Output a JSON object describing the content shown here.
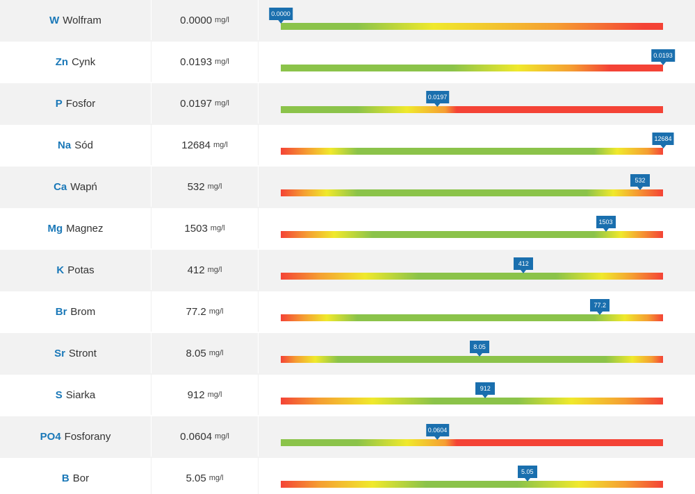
{
  "colors": {
    "green": "#8bc34a",
    "yellow": "#f0e92c",
    "orange": "#f59e32",
    "red": "#f44336",
    "accent": "#1a78b8",
    "marker": "#1a6fae"
  },
  "rows": [
    {
      "symbol": "W",
      "name": "Wolfram",
      "value": "0.0000",
      "unit": "mg/l",
      "marker": "0.0000",
      "marker_pos": 0.0,
      "gradient": [
        [
          "green",
          0.0
        ],
        [
          "green",
          0.2
        ],
        [
          "yellow",
          0.4
        ],
        [
          "orange",
          0.72
        ],
        [
          "red",
          0.95
        ],
        [
          "red",
          1.0
        ]
      ]
    },
    {
      "symbol": "Zn",
      "name": "Cynk",
      "value": "0.0193",
      "unit": "mg/l",
      "marker": "0.0193",
      "marker_pos": 1.0,
      "gradient": [
        [
          "green",
          0.0
        ],
        [
          "green",
          0.45
        ],
        [
          "yellow",
          0.62
        ],
        [
          "orange",
          0.76
        ],
        [
          "red",
          0.86
        ],
        [
          "red",
          1.0
        ]
      ]
    },
    {
      "symbol": "P",
      "name": "Fosfor",
      "value": "0.0197",
      "unit": "mg/l",
      "marker": "0.0197",
      "marker_pos": 0.41,
      "gradient": [
        [
          "green",
          0.0
        ],
        [
          "green",
          0.2
        ],
        [
          "yellow",
          0.33
        ],
        [
          "orange",
          0.43
        ],
        [
          "red",
          0.46
        ],
        [
          "red",
          1.0
        ]
      ]
    },
    {
      "symbol": "Na",
      "name": "Sód",
      "value": "12684",
      "unit": "mg/l",
      "marker": "12684",
      "marker_pos": 1.0,
      "gradient": [
        [
          "red",
          0.0
        ],
        [
          "orange",
          0.07
        ],
        [
          "yellow",
          0.13
        ],
        [
          "green",
          0.2
        ],
        [
          "green",
          0.82
        ],
        [
          "yellow",
          0.88
        ],
        [
          "orange",
          0.96
        ],
        [
          "red",
          1.0
        ]
      ]
    },
    {
      "symbol": "Ca",
      "name": "Wapń",
      "value": "532",
      "unit": "mg/l",
      "marker": "532",
      "marker_pos": 0.94,
      "gradient": [
        [
          "red",
          0.0
        ],
        [
          "orange",
          0.06
        ],
        [
          "yellow",
          0.12
        ],
        [
          "green",
          0.2
        ],
        [
          "green",
          0.8
        ],
        [
          "yellow",
          0.87
        ],
        [
          "orange",
          0.93
        ],
        [
          "red",
          1.0
        ]
      ]
    },
    {
      "symbol": "Mg",
      "name": "Magnez",
      "value": "1503",
      "unit": "mg/l",
      "marker": "1503",
      "marker_pos": 0.85,
      "gradient": [
        [
          "red",
          0.0
        ],
        [
          "orange",
          0.07
        ],
        [
          "yellow",
          0.14
        ],
        [
          "green",
          0.24
        ],
        [
          "green",
          0.82
        ],
        [
          "yellow",
          0.89
        ],
        [
          "orange",
          0.94
        ],
        [
          "red",
          1.0
        ]
      ]
    },
    {
      "symbol": "K",
      "name": "Potas",
      "value": "412",
      "unit": "mg/l",
      "marker": "412",
      "marker_pos": 0.635,
      "gradient": [
        [
          "red",
          0.0
        ],
        [
          "orange",
          0.1
        ],
        [
          "yellow",
          0.22
        ],
        [
          "green",
          0.36
        ],
        [
          "green",
          0.72
        ],
        [
          "yellow",
          0.84
        ],
        [
          "orange",
          0.92
        ],
        [
          "red",
          1.0
        ]
      ]
    },
    {
      "symbol": "Br",
      "name": "Brom",
      "value": "77.2",
      "unit": "mg/l",
      "marker": "77.2",
      "marker_pos": 0.835,
      "gradient": [
        [
          "red",
          0.0
        ],
        [
          "orange",
          0.06
        ],
        [
          "yellow",
          0.12
        ],
        [
          "green",
          0.2
        ],
        [
          "green",
          0.82
        ],
        [
          "yellow",
          0.9
        ],
        [
          "orange",
          0.96
        ],
        [
          "red",
          1.0
        ]
      ]
    },
    {
      "symbol": "Sr",
      "name": "Stront",
      "value": "8.05",
      "unit": "mg/l",
      "marker": "8.05",
      "marker_pos": 0.52,
      "gradient": [
        [
          "red",
          0.0
        ],
        [
          "orange",
          0.04
        ],
        [
          "yellow",
          0.09
        ],
        [
          "green",
          0.15
        ],
        [
          "green",
          0.85
        ],
        [
          "yellow",
          0.92
        ],
        [
          "orange",
          0.97
        ],
        [
          "red",
          1.0
        ]
      ]
    },
    {
      "symbol": "S",
      "name": "Siarka",
      "value": "912",
      "unit": "mg/l",
      "marker": "912",
      "marker_pos": 0.535,
      "gradient": [
        [
          "red",
          0.0
        ],
        [
          "orange",
          0.1
        ],
        [
          "yellow",
          0.24
        ],
        [
          "green",
          0.4
        ],
        [
          "green",
          0.62
        ],
        [
          "yellow",
          0.76
        ],
        [
          "orange",
          0.9
        ],
        [
          "red",
          1.0
        ]
      ]
    },
    {
      "symbol": "PO4",
      "name": "Fosforany",
      "value": "0.0604",
      "unit": "mg/l",
      "marker": "0.0604",
      "marker_pos": 0.41,
      "gradient": [
        [
          "green",
          0.0
        ],
        [
          "green",
          0.2
        ],
        [
          "yellow",
          0.33
        ],
        [
          "orange",
          0.43
        ],
        [
          "red",
          0.46
        ],
        [
          "red",
          1.0
        ]
      ]
    },
    {
      "symbol": "B",
      "name": "Bor",
      "value": "5.05",
      "unit": "mg/l",
      "marker": "5.05",
      "marker_pos": 0.645,
      "gradient": [
        [
          "red",
          0.0
        ],
        [
          "orange",
          0.1
        ],
        [
          "yellow",
          0.24
        ],
        [
          "green",
          0.38
        ],
        [
          "green",
          0.62
        ],
        [
          "yellow",
          0.78
        ],
        [
          "orange",
          0.9
        ],
        [
          "red",
          1.0
        ]
      ]
    }
  ]
}
